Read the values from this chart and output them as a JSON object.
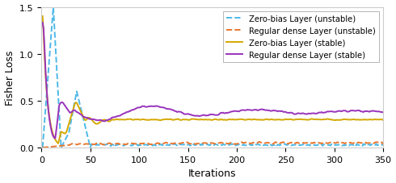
{
  "title": "",
  "xlabel": "Iterations",
  "ylabel": "Fisher Loss",
  "xlim": [
    0,
    350
  ],
  "ylim": [
    0,
    1.5
  ],
  "xticks": [
    0,
    50,
    100,
    150,
    200,
    250,
    300,
    350
  ],
  "yticks": [
    0,
    0.5,
    1.0,
    1.5
  ],
  "legend": [
    "Zero-bias Layer (unstable)",
    "Regular dense Layer (unstable)",
    "Zero-bias Layer (stable)",
    "Regular dense Layer (stable)"
  ],
  "colors": {
    "zero_bias_unstable": "#4db8e8",
    "regular_unstable": "#e87830",
    "zero_bias_stable": "#d4a800",
    "regular_stable": "#9933bb"
  },
  "background_color": "#ffffff"
}
